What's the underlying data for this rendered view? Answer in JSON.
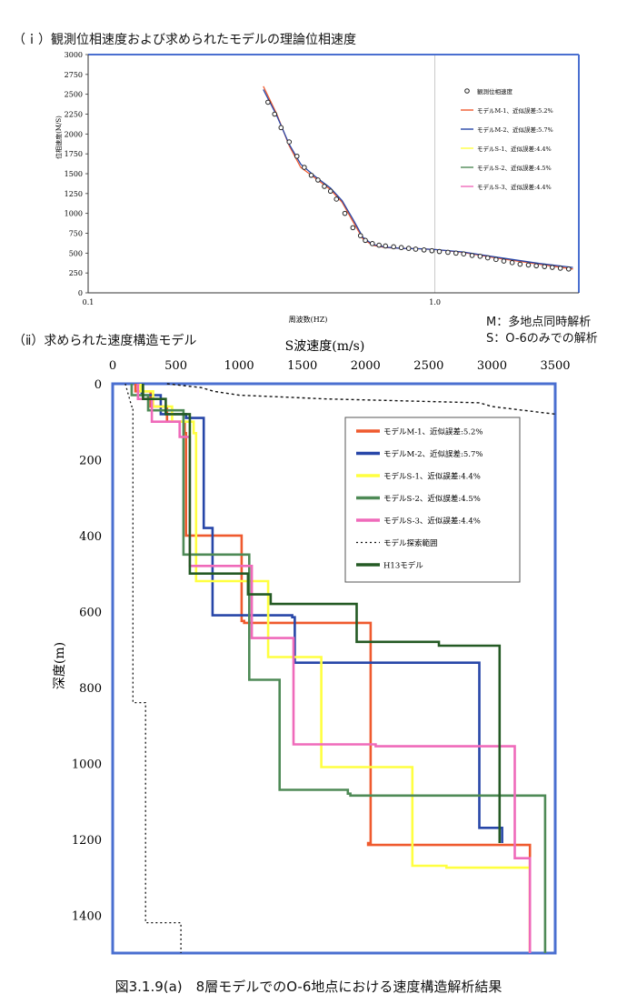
{
  "section1_title": "（ｉ）観測位相速度および求められたモデルの理論位相速度",
  "section2_title": "（ⅱ）求められた速度構造モデル",
  "note_m": "M：多地点同時解析",
  "note_s": "S：O-6のみでの解析",
  "figure_caption": "図3.1.9(a)　8層モデルでのO-6地点における速度構造解析結果",
  "colors": {
    "frame": "#4a6fd0",
    "m1": "#ef5a2e",
    "m2": "#2746a8",
    "s1": "#ffff40",
    "s2": "#4e8a56",
    "s3": "#ef6aba",
    "h13": "#245a24",
    "obs": "#222222"
  },
  "chart_data": [
    {
      "type": "line",
      "xscale": "log",
      "xlabel": "周波数(HZ)",
      "ylabel": "位相速度(M/S)",
      "xlim": [
        0.1,
        2.6
      ],
      "ylim": [
        0,
        3000
      ],
      "xticks": [
        {
          "v": 0.1,
          "label": "0.1"
        },
        {
          "v": 1.0,
          "label": "1.0"
        }
      ],
      "yticks": [
        0,
        250,
        500,
        750,
        1000,
        1250,
        1500,
        1750,
        2000,
        2250,
        2500,
        2750,
        3000
      ],
      "grid": "vertical at 0.1 and 1.0",
      "legend_position": "top-right",
      "observed": {
        "name": "観測位相速度",
        "x": [
          0.33,
          0.345,
          0.36,
          0.38,
          0.4,
          0.42,
          0.44,
          0.46,
          0.48,
          0.5,
          0.52,
          0.55,
          0.58,
          0.61,
          0.63,
          0.66,
          0.69,
          0.72,
          0.76,
          0.8,
          0.84,
          0.88,
          0.93,
          0.98,
          1.03,
          1.09,
          1.15,
          1.21,
          1.28,
          1.35,
          1.42,
          1.5,
          1.58,
          1.67,
          1.76,
          1.86,
          1.96,
          2.07,
          2.18,
          2.3,
          2.43
        ],
        "y": [
          2400,
          2250,
          2080,
          1900,
          1720,
          1580,
          1480,
          1420,
          1340,
          1280,
          1180,
          1000,
          820,
          720,
          660,
          620,
          600,
          590,
          580,
          570,
          560,
          550,
          540,
          530,
          520,
          510,
          500,
          490,
          470,
          460,
          440,
          420,
          400,
          380,
          360,
          350,
          340,
          330,
          320,
          310,
          300
        ]
      },
      "series": [
        {
          "name": "モデルM-1、近似誤差:5.2%",
          "color": "#ef5a2e",
          "x": [
            0.32,
            0.35,
            0.38,
            0.41,
            0.45,
            0.5,
            0.54,
            0.58,
            0.62,
            0.66,
            0.72,
            0.8,
            0.9,
            1.0,
            1.2,
            1.5,
            2.0,
            2.5
          ],
          "y": [
            2600,
            2250,
            1850,
            1580,
            1450,
            1300,
            1140,
            900,
            680,
            600,
            570,
            560,
            555,
            545,
            510,
            440,
            360,
            300
          ]
        },
        {
          "name": "モデルM-2、近似誤差:5.7%",
          "color": "#2746a8",
          "x": [
            0.32,
            0.35,
            0.38,
            0.41,
            0.45,
            0.5,
            0.54,
            0.58,
            0.62,
            0.66,
            0.72,
            0.8,
            0.9,
            1.0,
            1.2,
            1.5,
            2.0,
            2.5
          ],
          "y": [
            2560,
            2230,
            1870,
            1620,
            1470,
            1320,
            1160,
            930,
            700,
            610,
            575,
            560,
            555,
            545,
            515,
            450,
            370,
            320
          ]
        },
        {
          "name": "モデルS-1、近似誤差:4.4%",
          "color": "#ffff40",
          "x": [],
          "y": []
        },
        {
          "name": "モデルS-2、近似誤差:4.5%",
          "color": "#4e8a56",
          "x": [],
          "y": []
        },
        {
          "name": "モデルS-3、近似誤差:4.4%",
          "color": "#ef6aba",
          "x": [],
          "y": []
        }
      ]
    },
    {
      "type": "line",
      "title": "S波速度(m/s)",
      "ylabel": "深度(m)",
      "xlim": [
        0,
        3500
      ],
      "ylim": [
        1500,
        0
      ],
      "xticks": [
        0,
        500,
        1000,
        1500,
        2000,
        2500,
        3000,
        3500
      ],
      "yticks": [
        0,
        200,
        400,
        600,
        800,
        1000,
        1200,
        1400
      ],
      "legend_position": "top-right",
      "series": [
        {
          "name": "モデルM-1、近似誤差:5.2%",
          "color": "#ef5a2e",
          "x": [
            180,
            180,
            300,
            300,
            430,
            430,
            570,
            570,
            580,
            580,
            1020,
            1020,
            1040,
            1040,
            2040,
            2040,
            2020,
            2020,
            3300,
            3300
          ],
          "y": [
            0,
            20,
            20,
            60,
            60,
            100,
            100,
            130,
            130,
            400,
            400,
            625,
            625,
            630,
            630,
            1210,
            1210,
            1215,
            1215,
            1500
          ]
        },
        {
          "name": "モデルM-2、近似誤差:5.7%",
          "color": "#2746a8",
          "x": [
            230,
            230,
            380,
            380,
            580,
            580,
            720,
            720,
            790,
            790,
            1420,
            1420,
            1440,
            1440,
            2900,
            2900,
            3080,
            3080
          ],
          "y": [
            0,
            30,
            30,
            80,
            80,
            90,
            90,
            380,
            380,
            610,
            610,
            615,
            615,
            735,
            735,
            1170,
            1170,
            1210
          ]
        },
        {
          "name": "モデルS-1、近似誤差:4.4%",
          "color": "#ffff40",
          "x": [
            220,
            220,
            320,
            320,
            470,
            470,
            640,
            640,
            660,
            660,
            1230,
            1230,
            1650,
            1650,
            2370,
            2370,
            2640,
            2640,
            3300,
            3300
          ],
          "y": [
            0,
            20,
            20,
            60,
            60,
            100,
            100,
            130,
            130,
            520,
            520,
            720,
            720,
            1010,
            1010,
            1270,
            1270,
            1275,
            1275,
            1500
          ]
        },
        {
          "name": "モデルS-2、近似誤差:4.5%",
          "color": "#4e8a56",
          "x": [
            150,
            150,
            280,
            280,
            560,
            560,
            1080,
            1080,
            1320,
            1320,
            1860,
            1860,
            1880,
            1880,
            3420,
            3420
          ],
          "y": [
            0,
            30,
            30,
            70,
            70,
            450,
            450,
            780,
            780,
            1070,
            1070,
            1080,
            1080,
            1085,
            1085,
            1500
          ]
        },
        {
          "name": "モデルS-3、近似誤差:4.4%",
          "color": "#ef6aba",
          "x": [
            200,
            200,
            310,
            310,
            530,
            530,
            610,
            610,
            1100,
            1100,
            1430,
            1430,
            2080,
            2080,
            3180,
            3180,
            3300,
            3300
          ],
          "y": [
            0,
            40,
            40,
            100,
            100,
            140,
            140,
            480,
            480,
            670,
            670,
            950,
            950,
            955,
            955,
            1250,
            1250,
            1500
          ]
        },
        {
          "name": "モデル探索範囲",
          "color": "#111111",
          "x": [
            100,
            150,
            160,
            160,
            260,
            260,
            540,
            540
          ],
          "y": [
            0,
            60,
            60,
            840,
            840,
            1420,
            1420,
            1500
          ]
        },
        {
          "name": "H13モデル",
          "color": "#245a24",
          "x": [
            240,
            240,
            420,
            420,
            610,
            610,
            1070,
            1070,
            1250,
            1250,
            1930,
            1930,
            2580,
            2580,
            3060,
            3060
          ],
          "y": [
            0,
            40,
            40,
            80,
            80,
            500,
            500,
            555,
            555,
            580,
            580,
            680,
            680,
            690,
            690,
            1210
          ]
        }
      ],
      "search_range_upper": {
        "x": [
          430,
          700,
          800,
          1000,
          1700,
          2900,
          3000,
          3500
        ],
        "y": [
          0,
          10,
          20,
          30,
          40,
          50,
          60,
          80
        ]
      }
    }
  ]
}
